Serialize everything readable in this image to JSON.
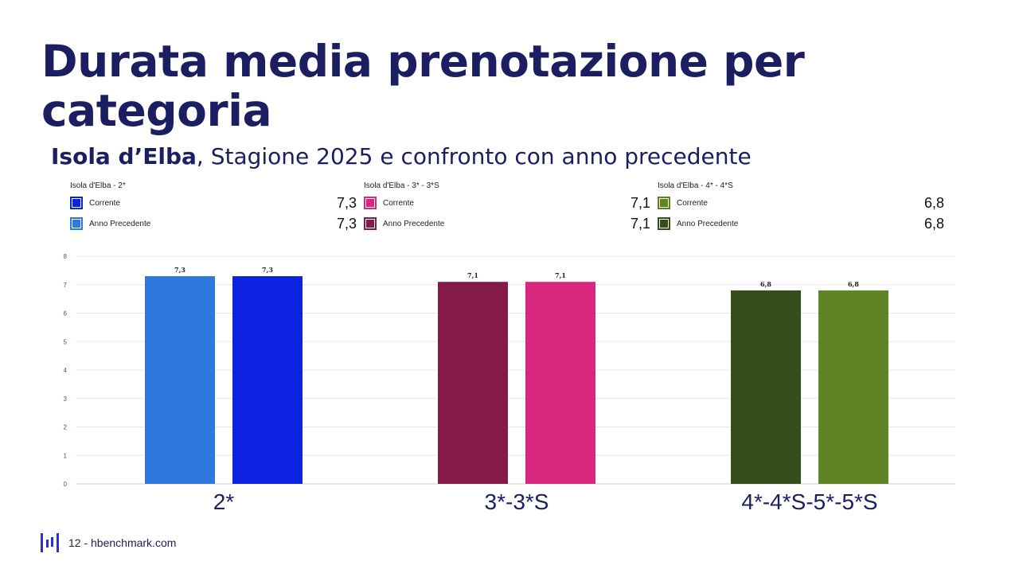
{
  "title": "Durata media prenotazione per categoria",
  "subtitle_bold": "Isola d’Elba",
  "subtitle_rest": ", Stagione 2025 e confronto con anno precedente",
  "legend": [
    {
      "group": "Isola d'Elba - 2*",
      "items": [
        {
          "label": "Corrente",
          "value": "7,3",
          "color": "#0b22e0"
        },
        {
          "label": "Anno Precedente",
          "value": "7,3",
          "color": "#2f78dc"
        }
      ]
    },
    {
      "group": "Isola d'Elba - 3* - 3*S",
      "items": [
        {
          "label": "Corrente",
          "value": "7,1",
          "color": "#d9277f"
        },
        {
          "label": "Anno Precedente",
          "value": "7,1",
          "color": "#831a4a"
        }
      ]
    },
    {
      "group": "Isola d'Elba - 4* - 4*S",
      "items": [
        {
          "label": "Corrente",
          "value": "6,8",
          "color": "#5f8423"
        },
        {
          "label": "Anno Precedente",
          "value": "6,8",
          "color": "#364d1c"
        }
      ]
    }
  ],
  "chart_data": {
    "type": "bar",
    "categories": [
      "2*",
      "3*-3*S",
      "4*-4*S-5*-5*S"
    ],
    "series": [
      {
        "name": "Anno Precedente",
        "values": [
          7.3,
          7.1,
          6.8
        ],
        "labels": [
          "7,3",
          "7,1",
          "6,8"
        ],
        "colors": [
          "#2f78dc",
          "#831a4a",
          "#364d1c"
        ]
      },
      {
        "name": "Corrente",
        "values": [
          7.3,
          7.1,
          6.8
        ],
        "labels": [
          "7,3",
          "7,1",
          "6,8"
        ],
        "colors": [
          "#0b22e0",
          "#d9277f",
          "#5f8423"
        ]
      }
    ],
    "yticks": [
      "0",
      "1",
      "2",
      "3",
      "4",
      "5",
      "6",
      "7",
      "8"
    ],
    "ylim": [
      0,
      8
    ],
    "grid": true
  },
  "footer": {
    "page": "12 - hbenchmark.com"
  }
}
